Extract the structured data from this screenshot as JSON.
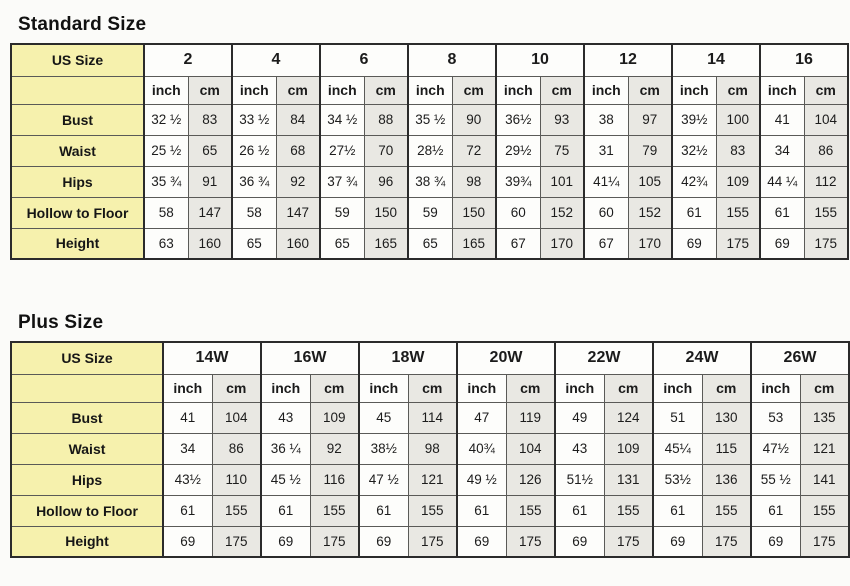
{
  "colors": {
    "label_column_bg": "#f6f1ad",
    "inch_column_bg": "#fdfdfb",
    "cm_column_bg": "#e9e8e3",
    "border": "#2b2b2b"
  },
  "tables": {
    "standard": {
      "title": "Standard Size",
      "corner_label": "US Size",
      "sizes": [
        "2",
        "4",
        "6",
        "8",
        "10",
        "12",
        "14",
        "16"
      ],
      "unit_labels": [
        "inch",
        "cm"
      ],
      "rows": [
        {
          "label": "Bust",
          "values": [
            "32 ½",
            "83",
            "33 ½",
            "84",
            "34 ½",
            "88",
            "35 ½",
            "90",
            "36½",
            "93",
            "38",
            "97",
            "39½",
            "100",
            "41",
            "104"
          ]
        },
        {
          "label": "Waist",
          "values": [
            "25 ½",
            "65",
            "26 ½",
            "68",
            "27½",
            "70",
            "28½",
            "72",
            "29½",
            "75",
            "31",
            "79",
            "32½",
            "83",
            "34",
            "86"
          ]
        },
        {
          "label": "Hips",
          "values": [
            "35 ¾",
            "91",
            "36 ¾",
            "92",
            "37 ¾",
            "96",
            "38 ¾",
            "98",
            "39¾",
            "101",
            "41¼",
            "105",
            "42¾",
            "109",
            "44 ¼",
            "112"
          ]
        },
        {
          "label": "Hollow to Floor",
          "values": [
            "58",
            "147",
            "58",
            "147",
            "59",
            "150",
            "59",
            "150",
            "60",
            "152",
            "60",
            "152",
            "61",
            "155",
            "61",
            "155"
          ]
        },
        {
          "label": "Height",
          "values": [
            "63",
            "160",
            "65",
            "160",
            "65",
            "165",
            "65",
            "165",
            "67",
            "170",
            "67",
            "170",
            "69",
            "175",
            "69",
            "175"
          ]
        }
      ]
    },
    "plus": {
      "title": "Plus Size",
      "corner_label": "US Size",
      "sizes": [
        "14W",
        "16W",
        "18W",
        "20W",
        "22W",
        "24W",
        "26W"
      ],
      "unit_labels": [
        "inch",
        "cm"
      ],
      "rows": [
        {
          "label": "Bust",
          "values": [
            "41",
            "104",
            "43",
            "109",
            "45",
            "114",
            "47",
            "119",
            "49",
            "124",
            "51",
            "130",
            "53",
            "135"
          ]
        },
        {
          "label": "Waist",
          "values": [
            "34",
            "86",
            "36 ¼",
            "92",
            "38½",
            "98",
            "40¾",
            "104",
            "43",
            "109",
            "45¼",
            "115",
            "47½",
            "121"
          ]
        },
        {
          "label": "Hips",
          "values": [
            "43½",
            "110",
            "45 ½",
            "116",
            "47 ½",
            "121",
            "49 ½",
            "126",
            "51½",
            "131",
            "53½",
            "136",
            "55 ½",
            "141"
          ]
        },
        {
          "label": "Hollow to Floor",
          "values": [
            "61",
            "155",
            "61",
            "155",
            "61",
            "155",
            "61",
            "155",
            "61",
            "155",
            "61",
            "155",
            "61",
            "155"
          ]
        },
        {
          "label": "Height",
          "values": [
            "69",
            "175",
            "69",
            "175",
            "69",
            "175",
            "69",
            "175",
            "69",
            "175",
            "69",
            "175",
            "69",
            "175"
          ]
        }
      ]
    }
  }
}
